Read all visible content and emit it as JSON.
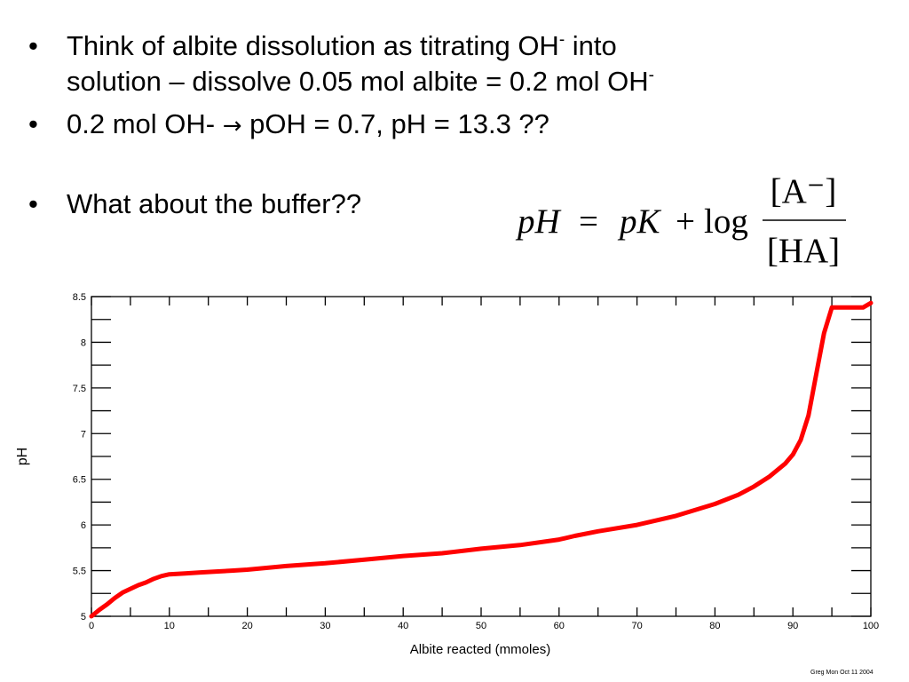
{
  "bullets": [
    {
      "text_before": "Think of albite dissolution as titrating OH",
      "sup1": "-",
      "text_after": " into",
      "line2": "solution – dissolve 0.05 mol albite = 0.2 mol OH",
      "sup2": "-"
    },
    {
      "before": "0.2 mol OH- ",
      "arrow": "→",
      "after": " pOH = 0.7, pH = 13.3  ??"
    },
    {
      "text": "What about the buffer??"
    }
  ],
  "formula": {
    "lhs": "pH",
    "equals": "=",
    "pk": "pK",
    "plus": "+",
    "log": "log",
    "numerator": "[A⁻]",
    "denominator": "[HA]"
  },
  "chart_data": {
    "type": "line",
    "title": "",
    "xlabel": "Albite reacted (mmoles)",
    "ylabel": "pH",
    "xlim": [
      0,
      100
    ],
    "ylim": [
      5,
      8.5
    ],
    "xticks": [
      0,
      10,
      20,
      30,
      40,
      50,
      60,
      70,
      80,
      90,
      100
    ],
    "yticks": [
      5,
      5.5,
      6,
      6.5,
      7,
      7.5,
      8,
      8.5
    ],
    "grid": false,
    "line_color": "#ff0000",
    "series": [
      {
        "x": [
          0,
          1,
          2,
          3,
          4,
          5,
          6,
          7,
          8,
          9,
          10,
          12,
          14,
          16,
          18,
          20,
          25,
          30,
          35,
          40,
          45,
          50,
          55,
          60,
          62,
          65,
          70,
          75,
          80,
          83,
          85,
          87,
          89,
          90,
          91,
          92,
          93,
          94,
          95,
          99,
          100
        ],
        "y": [
          5.0,
          5.07,
          5.13,
          5.2,
          5.26,
          5.3,
          5.34,
          5.37,
          5.41,
          5.44,
          5.46,
          5.47,
          5.48,
          5.49,
          5.5,
          5.51,
          5.55,
          5.58,
          5.62,
          5.66,
          5.69,
          5.74,
          5.78,
          5.84,
          5.88,
          5.93,
          6.0,
          6.1,
          6.23,
          6.33,
          6.42,
          6.53,
          6.67,
          6.77,
          6.93,
          7.2,
          7.65,
          8.1,
          8.38,
          8.38,
          8.43
        ]
      }
    ]
  },
  "credit": "Greg Mon Oct 11 2004"
}
